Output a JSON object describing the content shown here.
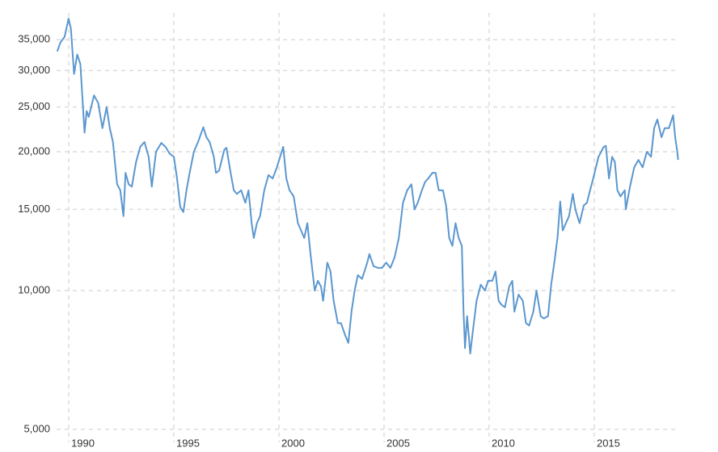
{
  "chart_data": {
    "type": "line",
    "log_scale": true,
    "grid": true,
    "color": "#5b97cf",
    "xlim": [
      1989.42,
      2019.04
    ],
    "xticks": [
      1990,
      1995,
      2000,
      2005,
      2010,
      2015
    ],
    "ylim": [
      5000,
      40000
    ],
    "yticks": [
      {
        "value": 5000,
        "label": "5,000"
      },
      {
        "value": 10000,
        "label": "10,000"
      },
      {
        "value": 15000,
        "label": "15,000"
      },
      {
        "value": 20000,
        "label": "20,000"
      },
      {
        "value": 25000,
        "label": "25,000"
      },
      {
        "value": 30000,
        "label": "30,000"
      },
      {
        "value": 35000,
        "label": "35,000"
      }
    ],
    "x": [
      1989.45,
      1989.6,
      1989.8,
      1989.99,
      1990.1,
      1990.25,
      1990.4,
      1990.55,
      1990.75,
      1990.85,
      1990.95,
      1991.2,
      1991.4,
      1991.6,
      1991.8,
      1991.95,
      1992.1,
      1992.3,
      1992.45,
      1992.6,
      1992.7,
      1992.85,
      1993.0,
      1993.2,
      1993.4,
      1993.6,
      1993.8,
      1993.95,
      1994.15,
      1994.4,
      1994.6,
      1994.8,
      1995.0,
      1995.15,
      1995.3,
      1995.45,
      1995.6,
      1995.75,
      1995.95,
      1996.15,
      1996.4,
      1996.55,
      1996.7,
      1996.9,
      1997.0,
      1997.15,
      1997.4,
      1997.5,
      1997.7,
      1997.85,
      1998.0,
      1998.2,
      1998.4,
      1998.55,
      1998.7,
      1998.8,
      1998.95,
      1999.1,
      1999.3,
      1999.5,
      1999.7,
      1999.9,
      2000.2,
      2000.35,
      2000.5,
      2000.7,
      2000.9,
      2001.05,
      2001.2,
      2001.35,
      2001.5,
      2001.7,
      2001.85,
      2002.0,
      2002.1,
      2002.3,
      2002.45,
      2002.6,
      2002.8,
      2002.95,
      2003.15,
      2003.3,
      2003.45,
      2003.6,
      2003.75,
      2003.95,
      2004.2,
      2004.3,
      2004.5,
      2004.7,
      2004.9,
      2005.1,
      2005.3,
      2005.5,
      2005.7,
      2005.9,
      2006.1,
      2006.3,
      2006.45,
      2006.6,
      2006.8,
      2006.95,
      2007.1,
      2007.3,
      2007.45,
      2007.6,
      2007.8,
      2007.95,
      2008.1,
      2008.25,
      2008.4,
      2008.55,
      2008.7,
      2008.78,
      2008.85,
      2008.95,
      2009.1,
      2009.2,
      2009.4,
      2009.6,
      2009.8,
      2009.95,
      2010.15,
      2010.3,
      2010.45,
      2010.6,
      2010.75,
      2010.95,
      2011.1,
      2011.2,
      2011.4,
      2011.6,
      2011.75,
      2011.9,
      2012.1,
      2012.25,
      2012.45,
      2012.6,
      2012.8,
      2012.95,
      2013.1,
      2013.25,
      2013.38,
      2013.5,
      2013.65,
      2013.8,
      2013.98,
      2014.1,
      2014.3,
      2014.5,
      2014.65,
      2014.8,
      2014.95,
      2015.2,
      2015.45,
      2015.55,
      2015.7,
      2015.85,
      2015.98,
      2016.1,
      2016.25,
      2016.45,
      2016.5,
      2016.7,
      2016.9,
      2017.1,
      2017.3,
      2017.5,
      2017.7,
      2017.85,
      2018.0,
      2018.2,
      2018.35,
      2018.55,
      2018.75,
      2018.85,
      2018.95,
      2018.99
    ],
    "values": [
      33000,
      34500,
      35500,
      38900,
      37000,
      29500,
      32500,
      31000,
      22000,
      24500,
      23800,
      26500,
      25500,
      22500,
      25000,
      22500,
      21000,
      17000,
      16500,
      14500,
      18000,
      17000,
      16800,
      19000,
      20500,
      21000,
      19500,
      16800,
      20000,
      20900,
      20500,
      19800,
      19500,
      17500,
      15200,
      14800,
      16500,
      18000,
      20000,
      21000,
      22600,
      21500,
      21000,
      19500,
      18000,
      18200,
      20200,
      20400,
      18000,
      16500,
      16200,
      16500,
      15500,
      16500,
      14000,
      13000,
      14000,
      14500,
      16500,
      17800,
      17500,
      18500,
      20500,
      17500,
      16500,
      16000,
      14000,
      13500,
      13000,
      14000,
      12000,
      10000,
      10500,
      10200,
      9500,
      11500,
      11000,
      9500,
      8500,
      8500,
      8000,
      7700,
      9000,
      10000,
      10800,
      10600,
      11500,
      12000,
      11300,
      11200,
      11200,
      11500,
      11200,
      11800,
      13000,
      15500,
      16500,
      17000,
      15000,
      15500,
      16500,
      17200,
      17500,
      18000,
      18000,
      16500,
      16500,
      15300,
      13000,
      12500,
      14000,
      13000,
      12500,
      9000,
      7500,
      8800,
      7300,
      8000,
      9500,
      10300,
      10000,
      10500,
      10500,
      11000,
      9500,
      9300,
      9200,
      10200,
      10500,
      9000,
      9800,
      9500,
      8500,
      8400,
      9000,
      10000,
      8800,
      8700,
      8800,
      10300,
      11500,
      13000,
      15600,
      13500,
      14000,
      14500,
      16200,
      15000,
      14000,
      15300,
      15500,
      16500,
      17500,
      19500,
      20500,
      20600,
      17500,
      19500,
      19000,
      16500,
      16000,
      16500,
      15000,
      16800,
      18500,
      19200,
      18500,
      20000,
      19500,
      22500,
      23500,
      21500,
      22500,
      22500,
      24000,
      21500,
      20000,
      19200
    ]
  }
}
